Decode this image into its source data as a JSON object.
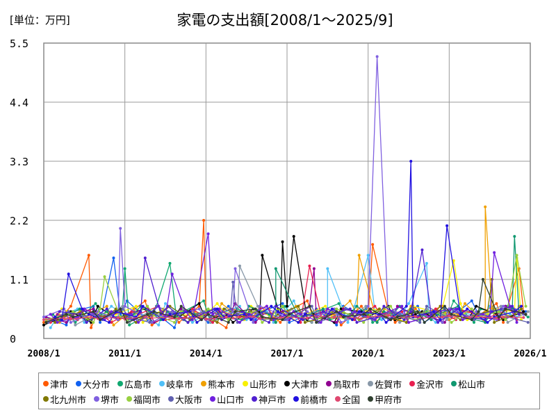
{
  "chart_data": {
    "type": "line",
    "title": "家電の支出額[2008/1～2025/9]",
    "unit_label": "[単位：万円]",
    "ylim": [
      0,
      5.5
    ],
    "yticks": [
      "0",
      "1.1",
      "2.2",
      "3.3",
      "4.4",
      "5.5"
    ],
    "xrange": [
      "2008/1",
      "2026/1"
    ],
    "xticks": [
      "2008/1",
      "2011/1",
      "2014/1",
      "2017/1",
      "2020/1",
      "2023/1",
      "2026/1"
    ],
    "grid": true,
    "legend": "bottom",
    "sampling": "semiannual from 2008/1, plus monthly peaks",
    "series": [
      {
        "name": "津市",
        "color": "#ff5a00",
        "values": [
          0.3,
          0.45,
          0.6,
          0.2,
          0.5,
          0.35,
          0.4,
          0.7,
          0.25,
          0.5,
          0.3,
          0.6,
          0.45,
          0.2,
          0.55,
          0.4,
          0.6,
          0.3,
          0.5,
          0.7,
          0.35,
          0.45,
          0.25,
          0.6,
          0.4,
          0.5,
          0.3,
          0.55,
          0.45,
          0.6,
          0.35,
          0.5,
          0.4,
          0.65,
          0.3,
          0.5
        ],
        "peaks": [
          [
            "2009/9",
            1.55
          ],
          [
            "2013/12",
            2.2
          ],
          [
            "2020/3",
            1.75
          ],
          [
            "2025/8",
            1.3
          ]
        ]
      },
      {
        "name": "大分市",
        "color": "#1060f0",
        "values": [
          0.4,
          0.25,
          0.5,
          0.6,
          0.3,
          0.45,
          0.7,
          0.35,
          0.5,
          0.2,
          0.55,
          0.4,
          0.3,
          0.6,
          0.45,
          0.35,
          0.5,
          0.65,
          0.3,
          0.45,
          0.55,
          0.25,
          0.6,
          0.4,
          0.5,
          0.35,
          0.45,
          0.6,
          0.3,
          0.55,
          0.4,
          0.7,
          0.45,
          0.35,
          0.6,
          0.5
        ],
        "peaks": [
          [
            "2010/8",
            1.5
          ]
        ]
      },
      {
        "name": "広島市",
        "color": "#10a870",
        "values": [
          0.35,
          0.5,
          0.3,
          0.65,
          0.4,
          0.55,
          0.25,
          0.45,
          0.6,
          0.35,
          0.5,
          0.7,
          0.3,
          0.45,
          0.55,
          0.4,
          0.35,
          0.6,
          0.45,
          0.3,
          0.5,
          0.65,
          0.4,
          0.55,
          0.3,
          0.45,
          0.6,
          0.35,
          0.5,
          0.4,
          0.7,
          0.3,
          0.55,
          0.45,
          0.6,
          0.4
        ],
        "peaks": [
          [
            "2012/9",
            1.4
          ],
          [
            "2011/1",
            1.3
          ]
        ]
      },
      {
        "name": "岐阜市",
        "color": "#50c0f8",
        "values": [
          0.2,
          0.4,
          0.55,
          0.3,
          0.45,
          0.6,
          0.35,
          0.5,
          0.25,
          0.65,
          0.4,
          0.3,
          0.55,
          0.45,
          0.6,
          0.35,
          0.5,
          0.3,
          0.7,
          0.4,
          0.45,
          0.55,
          0.3,
          0.6,
          0.5,
          0.35,
          0.45,
          0.65,
          0.4,
          0.3,
          0.55,
          0.5,
          0.35,
          0.6,
          0.45,
          0.4
        ],
        "peaks": [
          [
            "2018/7",
            1.3
          ],
          [
            "2020/1",
            1.55
          ],
          [
            "2022/3",
            1.4
          ]
        ]
      },
      {
        "name": "熊本市",
        "color": "#f0a000",
        "values": [
          0.45,
          0.3,
          0.5,
          0.4,
          0.6,
          0.25,
          0.55,
          0.35,
          0.45,
          0.6,
          0.3,
          0.5,
          0.4,
          0.65,
          0.35,
          0.45,
          0.55,
          0.3,
          0.6,
          0.4,
          0.5,
          0.35,
          0.7,
          0.45,
          0.3,
          0.55,
          0.4,
          0.6,
          0.35,
          0.5,
          0.45,
          0.65,
          0.3,
          0.55,
          0.4,
          0.6
        ],
        "peaks": [
          [
            "2019/9",
            1.55
          ],
          [
            "2024/5",
            2.45
          ]
        ]
      },
      {
        "name": "山形市",
        "color": "#f8f000",
        "values": [
          0.3,
          0.55,
          0.4,
          0.35,
          0.5,
          0.45,
          0.6,
          0.3,
          0.55,
          0.4,
          0.45,
          0.3,
          0.65,
          0.5,
          0.35,
          0.6,
          0.4,
          0.55,
          0.3,
          0.45,
          0.6,
          0.4,
          0.35,
          0.5,
          0.55,
          0.45,
          0.3,
          0.6,
          0.5,
          0.4,
          0.65,
          0.35,
          0.45,
          0.55,
          0.5,
          0.35
        ],
        "peaks": [
          [
            "2023/3",
            1.45
          ],
          [
            "2025/7",
            1.5
          ]
        ]
      },
      {
        "name": "大津市",
        "color": "#000000",
        "values": [
          0.25,
          0.4,
          0.5,
          0.3,
          0.6,
          0.35,
          0.45,
          0.55,
          0.3,
          0.5,
          0.4,
          0.65,
          0.35,
          0.45,
          0.3,
          0.55,
          0.5,
          0.4,
          0.6,
          0.35,
          0.45,
          0.3,
          0.55,
          0.5,
          0.4,
          0.6,
          0.35,
          0.45,
          0.5,
          0.3,
          0.55,
          0.4,
          0.6,
          0.45,
          0.35,
          0.5
        ],
        "peaks": [
          [
            "2016/2",
            1.55
          ],
          [
            "2017/4",
            1.9
          ],
          [
            "2016/11",
            1.8
          ]
        ]
      },
      {
        "name": "鳥取市",
        "color": "#900090",
        "values": [
          0.4,
          0.3,
          0.45,
          0.55,
          0.35,
          0.5,
          0.4,
          0.6,
          0.3,
          0.45,
          0.55,
          0.35,
          0.5,
          0.4,
          0.65,
          0.3,
          0.45,
          0.5,
          0.35,
          0.6,
          0.4,
          0.3,
          0.55,
          0.45,
          0.5,
          0.35,
          0.6,
          0.4,
          0.45,
          0.3,
          0.55,
          0.5,
          0.4,
          0.35,
          0.6,
          0.45
        ],
        "peaks": [
          [
            "2018/1",
            1.3
          ]
        ]
      },
      {
        "name": "佐賀市",
        "color": "#8898a8",
        "values": [
          0.35,
          0.5,
          0.25,
          0.45,
          0.4,
          0.6,
          0.3,
          0.5,
          0.45,
          0.35,
          0.55,
          0.4,
          0.3,
          0.5,
          0.45,
          0.6,
          0.35,
          0.4,
          0.55,
          0.3,
          0.5,
          0.45,
          0.35,
          0.6,
          0.4,
          0.5,
          0.3,
          0.45,
          0.55,
          0.35,
          0.5,
          0.4,
          0.45,
          0.6,
          0.3,
          0.5
        ],
        "peaks": [
          [
            "2015/4",
            1.35
          ]
        ]
      },
      {
        "name": "金沢市",
        "color": "#e82050",
        "values": [
          0.3,
          0.45,
          0.35,
          0.55,
          0.4,
          0.3,
          0.5,
          0.45,
          0.6,
          0.35,
          0.4,
          0.55,
          0.3,
          0.5,
          0.4,
          0.45,
          0.6,
          0.35,
          0.5,
          0.3,
          0.45,
          0.55,
          0.4,
          0.35,
          0.6,
          0.45,
          0.5,
          0.3,
          0.4,
          0.55,
          0.35,
          0.5,
          0.45,
          0.4,
          0.55,
          0.35
        ],
        "peaks": [
          [
            "2017/11",
            1.35
          ]
        ]
      },
      {
        "name": "松山市",
        "color": "#109870",
        "values": [
          0.45,
          0.35,
          0.55,
          0.3,
          0.5,
          0.4,
          0.45,
          0.6,
          0.35,
          0.5,
          0.3,
          0.45,
          0.55,
          0.4,
          0.35,
          0.6,
          0.45,
          0.3,
          0.5,
          0.4,
          0.55,
          0.35,
          0.45,
          0.6,
          0.3,
          0.5,
          0.4,
          0.55,
          0.35,
          0.45,
          0.6,
          0.4,
          0.3,
          0.5,
          0.55,
          0.45
        ],
        "peaks": [
          [
            "2016/8",
            1.3
          ],
          [
            "2025/6",
            1.9
          ]
        ]
      },
      {
        "name": "北九州市",
        "color": "#807800",
        "values": [
          0.3,
          0.4,
          0.5,
          0.35,
          0.45,
          0.55,
          0.3,
          0.4,
          0.5,
          0.6,
          0.35,
          0.45,
          0.3,
          0.55,
          0.4,
          0.5,
          0.35,
          0.45,
          0.6,
          0.3,
          0.4,
          0.5,
          0.45,
          0.35,
          0.55,
          0.4,
          0.3,
          0.5,
          0.45,
          0.6,
          0.35,
          0.4,
          0.5,
          0.3,
          0.45,
          0.55
        ],
        "peaks": [
          [
            "2024/8",
            1.1
          ]
        ]
      },
      {
        "name": "堺市",
        "color": "#8060e0",
        "values": [
          0.4,
          0.55,
          0.3,
          0.45,
          0.5,
          0.35,
          0.6,
          0.4,
          0.3,
          0.5,
          0.45,
          0.55,
          0.35,
          0.4,
          0.5,
          0.3,
          0.6,
          0.45,
          0.35,
          0.5,
          0.4,
          0.55,
          0.3,
          0.45,
          0.6,
          0.35,
          0.5,
          0.4,
          0.45,
          0.3,
          0.55,
          0.4,
          0.5,
          0.35,
          0.6,
          0.45
        ],
        "peaks": [
          [
            "2010/11",
            2.05
          ],
          [
            "2015/2",
            1.3
          ],
          [
            "2020/5",
            5.25
          ]
        ]
      },
      {
        "name": "福岡市",
        "color": "#98d040",
        "values": [
          0.35,
          0.45,
          0.5,
          0.3,
          0.55,
          0.4,
          0.35,
          0.6,
          0.45,
          0.3,
          0.5,
          0.4,
          0.55,
          0.35,
          0.45,
          0.5,
          0.3,
          0.6,
          0.4,
          0.45,
          0.35,
          0.55,
          0.5,
          0.3,
          0.45,
          0.6,
          0.4,
          0.35,
          0.5,
          0.45,
          0.3,
          0.55,
          0.4,
          0.5,
          0.35,
          0.6
        ],
        "peaks": [
          [
            "2010/4",
            1.15
          ],
          [
            "2025/7",
            1.55
          ]
        ]
      },
      {
        "name": "大阪市",
        "color": "#6060b0",
        "values": [
          0.3,
          0.5,
          0.4,
          0.45,
          0.35,
          0.55,
          0.4,
          0.3,
          0.6,
          0.45,
          0.35,
          0.5,
          0.4,
          0.55,
          0.3,
          0.45,
          0.5,
          0.35,
          0.4,
          0.6,
          0.3,
          0.45,
          0.55,
          0.4,
          0.35,
          0.5,
          0.45,
          0.3,
          0.6,
          0.4,
          0.5,
          0.35,
          0.45,
          0.55,
          0.4,
          0.3
        ],
        "peaks": [
          [
            "2015/1",
            1.05
          ]
        ]
      },
      {
        "name": "山口市",
        "color": "#7020e0",
        "values": [
          0.45,
          0.3,
          0.4,
          0.55,
          0.35,
          0.5,
          0.45,
          0.3,
          0.6,
          0.4,
          0.5,
          0.35,
          0.45,
          0.55,
          0.3,
          0.4,
          0.6,
          0.35,
          0.5,
          0.45,
          0.3,
          0.55,
          0.4,
          0.5,
          0.35,
          0.45,
          0.6,
          0.3,
          0.4,
          0.5,
          0.55,
          0.35,
          0.45,
          0.4,
          0.6,
          0.3
        ],
        "peaks": [
          [
            "2014/2",
            1.95
          ],
          [
            "2024/9",
            1.6
          ],
          [
            "2012/10",
            1.2
          ]
        ]
      },
      {
        "name": "神戸市",
        "color": "#5020d0",
        "values": [
          0.35,
          0.5,
          0.45,
          0.3,
          0.55,
          0.4,
          0.35,
          0.5,
          0.45,
          0.6,
          0.3,
          0.4,
          0.55,
          0.35,
          0.5,
          0.45,
          0.3,
          0.6,
          0.4,
          0.35,
          0.5,
          0.45,
          0.55,
          0.3,
          0.4,
          0.6,
          0.35,
          0.5,
          0.45,
          0.3,
          0.55,
          0.4,
          0.35,
          0.5,
          0.6,
          0.45
        ],
        "peaks": [
          [
            "2011/10",
            1.5
          ],
          [
            "2022/1",
            1.65
          ]
        ]
      },
      {
        "name": "前橋市",
        "color": "#2010e0",
        "values": [
          0.4,
          0.35,
          0.55,
          0.45,
          0.3,
          0.5,
          0.4,
          0.6,
          0.35,
          0.45,
          0.5,
          0.3,
          0.55,
          0.4,
          0.45,
          0.35,
          0.6,
          0.5,
          0.3,
          0.45,
          0.4,
          0.55,
          0.35,
          0.5,
          0.45,
          0.3,
          0.6,
          0.4,
          0.5,
          0.35,
          0.45,
          0.55,
          0.3,
          0.4,
          0.5,
          0.6
        ],
        "peaks": [
          [
            "2008/12",
            1.2
          ],
          [
            "2021/8",
            3.3
          ],
          [
            "2022/12",
            2.1
          ]
        ]
      },
      {
        "name": "全国",
        "color": "#e04870",
        "values": [
          0.35,
          0.38,
          0.36,
          0.4,
          0.37,
          0.39,
          0.36,
          0.41,
          0.38,
          0.4,
          0.37,
          0.39,
          0.36,
          0.4,
          0.38,
          0.41,
          0.37,
          0.39,
          0.4,
          0.38,
          0.42,
          0.39,
          0.41,
          0.37,
          0.4,
          0.43,
          0.39,
          0.41,
          0.38,
          0.4,
          0.42,
          0.39,
          0.41,
          0.38,
          0.4,
          0.39
        ],
        "peaks": []
      },
      {
        "name": "甲府市",
        "color": "#304030",
        "values": [
          0.3,
          0.45,
          0.4,
          0.5,
          0.35,
          0.55,
          0.3,
          0.45,
          0.5,
          0.4,
          0.6,
          0.35,
          0.45,
          0.3,
          0.5,
          0.55,
          0.4,
          0.35,
          0.45,
          0.6,
          0.3,
          0.5,
          0.4,
          0.45,
          0.55,
          0.35,
          0.4,
          0.5,
          0.3,
          0.6,
          0.45,
          0.35,
          0.5,
          0.4,
          0.55,
          0.45
        ],
        "peaks": [
          [
            "2024/4",
            1.1
          ]
        ]
      }
    ]
  }
}
